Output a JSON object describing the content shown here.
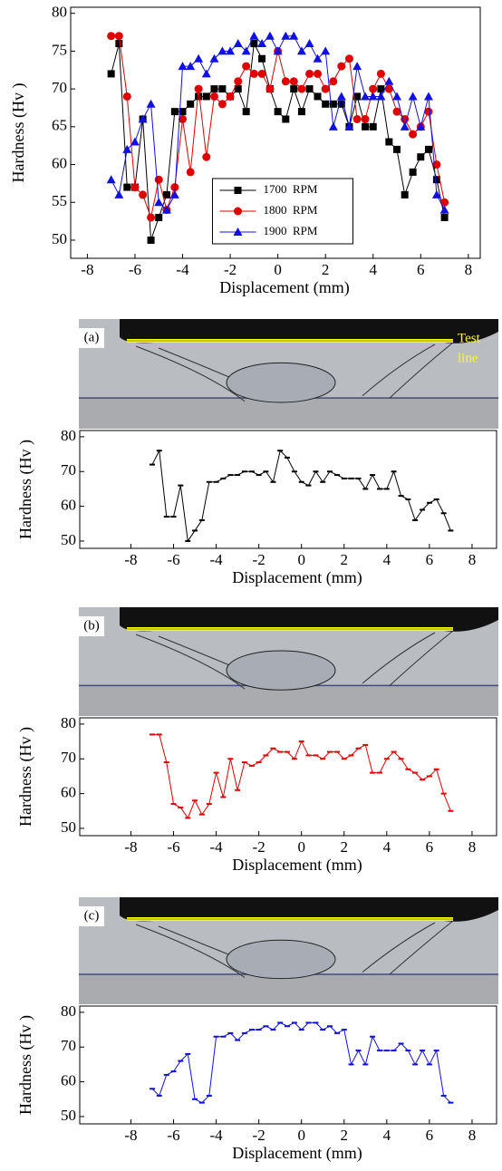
{
  "chart_data": [
    {
      "type": "line",
      "y_label": "Hardness (Hv )",
      "x_label": "Displacement (mm)",
      "x": [
        -7,
        -6.67,
        -6.33,
        -6,
        -5.67,
        -5.33,
        -5,
        -4.67,
        -4.33,
        -4,
        -3.67,
        -3.33,
        -3,
        -2.67,
        -2.33,
        -2,
        -1.67,
        -1.33,
        -1,
        -0.67,
        -0.33,
        0,
        0.33,
        0.67,
        1,
        1.33,
        1.67,
        2,
        2.33,
        2.67,
        3,
        3.33,
        3.67,
        4,
        4.33,
        4.67,
        5,
        5.33,
        5.67,
        6,
        6.33,
        6.67,
        7
      ],
      "series": [
        {
          "name": "1700  RPM",
          "color": "#000000",
          "marker": "square",
          "values": [
            72,
            76,
            57,
            57,
            66,
            50,
            53,
            56,
            67,
            67,
            68,
            69,
            69,
            70,
            70,
            69,
            70,
            67,
            76,
            74,
            70,
            67,
            66,
            70,
            67,
            70,
            69,
            68,
            68,
            68,
            65,
            69,
            65,
            65,
            70,
            63,
            62,
            56,
            59,
            61,
            62,
            58,
            53
          ]
        },
        {
          "name": "1800  RPM",
          "color": "#e00000",
          "marker": "circle",
          "values": [
            77,
            77,
            69,
            57,
            56,
            53,
            58,
            54,
            57,
            66,
            59,
            70,
            61,
            69,
            68,
            69,
            71,
            73,
            72,
            72,
            70,
            75,
            71,
            71,
            70,
            72,
            72,
            70,
            71,
            73,
            74,
            66,
            66,
            70,
            72,
            70,
            67,
            66,
            64,
            65,
            67,
            60,
            55
          ]
        },
        {
          "name": "1900  RPM",
          "color": "#1010e0",
          "marker": "triangle",
          "values": [
            58,
            56,
            62,
            63,
            66,
            68,
            55,
            54,
            56,
            73,
            73,
            74,
            72,
            74,
            75,
            75,
            76,
            75,
            77,
            76,
            77,
            75,
            77,
            77,
            75,
            76,
            74,
            75,
            65,
            69,
            65,
            73,
            69,
            69,
            69,
            71,
            69,
            65,
            69,
            65,
            69,
            56,
            54
          ]
        }
      ],
      "xlim": [
        -8.7,
        8.5
      ],
      "ylim": [
        47.6,
        80.8
      ],
      "xticks": [
        -8,
        -6,
        -4,
        -2,
        0,
        2,
        4,
        6,
        8
      ],
      "yticks": [
        50,
        55,
        60,
        65,
        70,
        75,
        80
      ],
      "legend": "lower center"
    },
    {
      "type": "step-line",
      "panel_label": "(a)",
      "annotation_lines": [
        "Test",
        "line"
      ],
      "y_label": "Hardness (Hv )",
      "x_label": "Displacement (mm)",
      "x": [
        -7,
        -6.67,
        -6.33,
        -6,
        -5.67,
        -5.33,
        -5,
        -4.67,
        -4.33,
        -4,
        -3.67,
        -3.33,
        -3,
        -2.67,
        -2.33,
        -2,
        -1.67,
        -1.33,
        -1,
        -0.67,
        -0.33,
        0,
        0.33,
        0.67,
        1,
        1.33,
        1.67,
        2,
        2.33,
        2.67,
        3,
        3.33,
        3.67,
        4,
        4.33,
        4.67,
        5,
        5.33,
        5.67,
        6,
        6.33,
        6.67,
        7
      ],
      "series": [
        {
          "color": "#000000",
          "values": [
            72,
            76,
            57,
            57,
            66,
            50,
            53,
            56,
            67,
            67,
            68,
            69,
            69,
            70,
            70,
            69,
            70,
            67,
            76,
            74,
            70,
            67,
            66,
            70,
            67,
            70,
            69,
            68,
            68,
            68,
            65,
            69,
            65,
            65,
            70,
            63,
            62,
            56,
            59,
            61,
            62,
            58,
            53
          ]
        }
      ],
      "xlim": [
        -10.4,
        9.15
      ],
      "ylim": [
        47.9,
        81.8
      ],
      "xticks": [
        -8,
        -6,
        -4,
        -2,
        0,
        2,
        4,
        6,
        8
      ],
      "yticks": [
        50,
        60,
        70,
        80
      ]
    },
    {
      "type": "step-line",
      "panel_label": "(b)",
      "y_label": "Hardness (Hv )",
      "x_label": "Displacement (mm)",
      "x": [
        -7,
        -6.67,
        -6.33,
        -6,
        -5.67,
        -5.33,
        -5,
        -4.67,
        -4.33,
        -4,
        -3.67,
        -3.33,
        -3,
        -2.67,
        -2.33,
        -2,
        -1.67,
        -1.33,
        -1,
        -0.67,
        -0.33,
        0,
        0.33,
        0.67,
        1,
        1.33,
        1.67,
        2,
        2.33,
        2.67,
        3,
        3.33,
        3.67,
        4,
        4.33,
        4.67,
        5,
        5.33,
        5.67,
        6,
        6.33,
        6.67,
        7
      ],
      "series": [
        {
          "color": "#e00000",
          "values": [
            77,
            77,
            69,
            57,
            56,
            53,
            58,
            54,
            57,
            66,
            59,
            70,
            61,
            69,
            68,
            69,
            71,
            73,
            72,
            72,
            70,
            75,
            71,
            71,
            70,
            72,
            72,
            70,
            71,
            73,
            74,
            66,
            66,
            70,
            72,
            70,
            67,
            66,
            64,
            65,
            67,
            60,
            55
          ]
        }
      ],
      "xlim": [
        -10.4,
        9.15
      ],
      "ylim": [
        47.9,
        81.8
      ],
      "xticks": [
        -8,
        -6,
        -4,
        -2,
        0,
        2,
        4,
        6,
        8
      ],
      "yticks": [
        50,
        60,
        70,
        80
      ]
    },
    {
      "type": "step-line",
      "panel_label": "(c)",
      "y_label": "Hardness (Hv )",
      "x_label": "Displacement (mm)",
      "x": [
        -7,
        -6.67,
        -6.33,
        -6,
        -5.67,
        -5.33,
        -5,
        -4.67,
        -4.33,
        -4,
        -3.67,
        -3.33,
        -3,
        -2.67,
        -2.33,
        -2,
        -1.67,
        -1.33,
        -1,
        -0.67,
        -0.33,
        0,
        0.33,
        0.67,
        1,
        1.33,
        1.67,
        2,
        2.33,
        2.67,
        3,
        3.33,
        3.67,
        4,
        4.33,
        4.67,
        5,
        5.33,
        5.67,
        6,
        6.33,
        6.67,
        7
      ],
      "series": [
        {
          "color": "#1010e0",
          "values": [
            58,
            56,
            62,
            63,
            66,
            68,
            55,
            54,
            56,
            73,
            73,
            74,
            72,
            74,
            75,
            75,
            76,
            75,
            77,
            76,
            77,
            75,
            77,
            77,
            75,
            76,
            74,
            75,
            65,
            69,
            65,
            73,
            69,
            69,
            69,
            71,
            69,
            65,
            69,
            65,
            69,
            56,
            54
          ]
        }
      ],
      "xlim": [
        -10.4,
        9.15
      ],
      "ylim": [
        47.9,
        81.8
      ],
      "xticks": [
        -8,
        -6,
        -4,
        -2,
        0,
        2,
        4,
        6,
        8
      ],
      "yticks": [
        50,
        60,
        70,
        80
      ]
    }
  ]
}
